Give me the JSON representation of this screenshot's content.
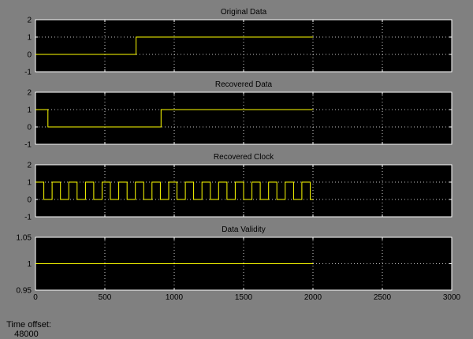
{
  "window": {
    "background": "#808080",
    "axes_background": "#000000",
    "grid_color": "#ffffff",
    "trace_color": "#ffff00"
  },
  "status": {
    "time_offset_label": "Time offset:",
    "time_offset_value": "48000"
  },
  "chart_data": [
    {
      "type": "line",
      "title": "Original Data",
      "xlabel": "",
      "ylabel": "",
      "xlim": [
        0,
        3000
      ],
      "ylim": [
        -1,
        2
      ],
      "yticks": [
        -1,
        0,
        1,
        2
      ],
      "yticklabels": [
        "-1",
        "0",
        "1",
        "2"
      ],
      "xticks": [
        0,
        500,
        1000,
        1500,
        2000,
        2500,
        3000
      ],
      "grid": true,
      "step": true,
      "series": [
        {
          "x": [
            0,
            725,
            2000
          ],
          "values": [
            0,
            1,
            1
          ]
        }
      ]
    },
    {
      "type": "line",
      "title": "Recovered Data",
      "xlabel": "",
      "ylabel": "",
      "xlim": [
        0,
        3000
      ],
      "ylim": [
        -1,
        2
      ],
      "yticks": [
        -1,
        0,
        1,
        2
      ],
      "yticklabels": [
        "-1",
        "0",
        "1",
        "2"
      ],
      "xticks": [
        0,
        500,
        1000,
        1500,
        2000,
        2500,
        3000
      ],
      "grid": true,
      "step": true,
      "series": [
        {
          "x": [
            0,
            90,
            905,
            2000
          ],
          "values": [
            1,
            0,
            1,
            1
          ]
        }
      ]
    },
    {
      "type": "line",
      "title": "Recovered Clock",
      "xlabel": "",
      "ylabel": "",
      "xlim": [
        0,
        3000
      ],
      "ylim": [
        -1,
        2
      ],
      "yticks": [
        -1,
        0,
        1,
        2
      ],
      "yticklabels": [
        "-1",
        "0",
        "1",
        "2"
      ],
      "xticks": [
        0,
        500,
        1000,
        1500,
        2000,
        2500,
        3000
      ],
      "grid": true,
      "step": true,
      "series": [
        {
          "x": [
            0,
            60,
            120,
            180,
            240,
            300,
            360,
            420,
            480,
            540,
            600,
            660,
            720,
            780,
            840,
            900,
            960,
            1020,
            1080,
            1140,
            1200,
            1260,
            1320,
            1380,
            1440,
            1500,
            1560,
            1620,
            1680,
            1740,
            1800,
            1860,
            1920,
            1980,
            2000
          ],
          "values": [
            1,
            0,
            1,
            0,
            1,
            0,
            1,
            0,
            1,
            0,
            1,
            0,
            1,
            0,
            1,
            0,
            1,
            0,
            1,
            0,
            1,
            0,
            1,
            0,
            1,
            0,
            1,
            0,
            1,
            0,
            1,
            0,
            1,
            0,
            0
          ]
        }
      ]
    },
    {
      "type": "line",
      "title": "Data Validity",
      "xlabel": "",
      "ylabel": "",
      "xlim": [
        0,
        3000
      ],
      "ylim": [
        0.95,
        1.05
      ],
      "yticks": [
        0.95,
        1,
        1.05
      ],
      "yticklabels": [
        "0.95",
        "1",
        "1.05"
      ],
      "xticks": [
        0,
        500,
        1000,
        1500,
        2000,
        2500,
        3000
      ],
      "xticklabels": [
        "0",
        "500",
        "1000",
        "1500",
        "2000",
        "2500",
        "3000"
      ],
      "grid": true,
      "step": true,
      "series": [
        {
          "x": [
            0,
            2000
          ],
          "values": [
            1,
            1
          ]
        }
      ]
    }
  ]
}
